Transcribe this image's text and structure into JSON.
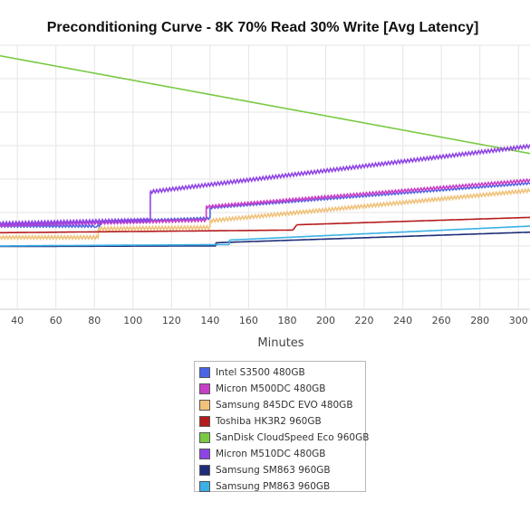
{
  "chart_data": {
    "type": "line",
    "title": "Preconditioning Curve - 8K 70% Read 30% Write [Avg Latency]",
    "xlabel": "Minutes",
    "ylabel": "",
    "xlim": [
      31,
      306
    ],
    "ylim": [
      0,
      1
    ],
    "x_ticks": [
      "40",
      "60",
      "80",
      "100",
      "120",
      "140",
      "160",
      "180",
      "200",
      "220",
      "240",
      "260",
      "280",
      "300"
    ],
    "grid": true,
    "legend_position": "bottom-center",
    "series": [
      {
        "name": "Intel S3500 480GB",
        "color": "#4a66e6",
        "segments": [
          {
            "x": [
              31,
              80,
              82,
              83
            ],
            "y": [
              0.315,
              0.315,
              0.316,
              0.318
            ]
          },
          {
            "x": [
              83,
              140
            ],
            "y": [
              0.33,
              0.345
            ]
          },
          {
            "x": [
              140,
              306
            ],
            "y": [
              0.385,
              0.478
            ]
          }
        ],
        "jitter": 0.004
      },
      {
        "name": "Micron M500DC 480GB",
        "color": "#c93ec9",
        "segments": [
          {
            "x": [
              31,
              138
            ],
            "y": [
              0.318,
              0.338
            ]
          },
          {
            "x": [
              138,
              306
            ],
            "y": [
              0.388,
              0.488
            ]
          }
        ],
        "jitter": 0.005
      },
      {
        "name": "Samsung 845DC EVO 480GB",
        "color": "#f0c27a",
        "segments": [
          {
            "x": [
              31,
              82
            ],
            "y": [
              0.272,
              0.272
            ]
          },
          {
            "x": [
              82,
              140
            ],
            "y": [
              0.305,
              0.31
            ]
          },
          {
            "x": [
              140,
              306
            ],
            "y": [
              0.335,
              0.45
            ]
          }
        ],
        "jitter": 0.006
      },
      {
        "name": "Toshiba HK3R2 960GB",
        "color": "#b51c1c",
        "segments": [
          {
            "x": [
              31,
              183
            ],
            "y": [
              0.29,
              0.3
            ]
          },
          {
            "x": [
              185,
              306
            ],
            "y": [
              0.32,
              0.348
            ]
          }
        ],
        "jitter": 0.0
      },
      {
        "name": "SanDisk CloudSpeed Eco 960GB",
        "color": "#7ac943",
        "segments": [
          {
            "x": [
              31,
              306
            ],
            "y": [
              0.96,
              0.59
            ]
          }
        ],
        "jitter": 0.0
      },
      {
        "name": "Micron M510DC 480GB",
        "color": "#8e44e6",
        "segments": [
          {
            "x": [
              31,
              109
            ],
            "y": [
              0.325,
              0.338
            ]
          },
          {
            "x": [
              109,
              306
            ],
            "y": [
              0.445,
              0.618
            ]
          }
        ],
        "jitter": 0.006
      },
      {
        "name": "Samsung SM863 960GB",
        "color": "#1e2d78",
        "segments": [
          {
            "x": [
              31,
              143
            ],
            "y": [
              0.238,
              0.24
            ]
          },
          {
            "x": [
              143,
              306
            ],
            "y": [
              0.252,
              0.292
            ]
          }
        ],
        "jitter": 0.0
      },
      {
        "name": "Samsung PM863 960GB",
        "color": "#3ab0e6",
        "segments": [
          {
            "x": [
              31,
              150
            ],
            "y": [
              0.24,
              0.245
            ]
          },
          {
            "x": [
              150,
              306
            ],
            "y": [
              0.262,
              0.315
            ]
          }
        ],
        "jitter": 0.0
      }
    ]
  }
}
